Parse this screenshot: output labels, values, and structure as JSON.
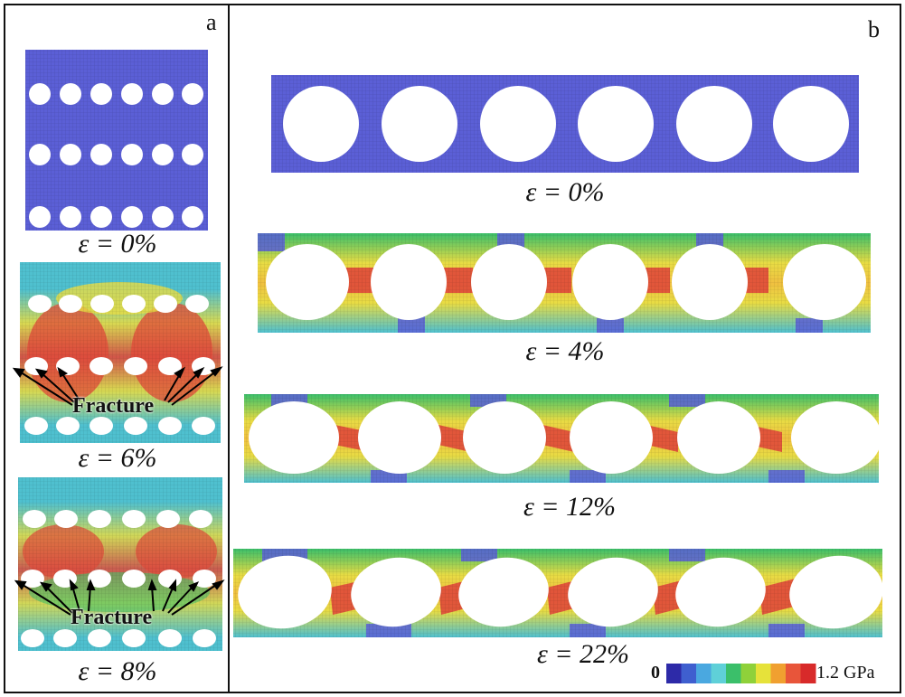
{
  "panels": {
    "a": {
      "letter": "a",
      "strain_labels": [
        "ε = 0%",
        "ε = 6%",
        "ε = 8%"
      ],
      "fracture_label": "Fracture"
    },
    "b": {
      "letter": "b",
      "strain_labels": [
        "ε = 0%",
        "ε = 4%",
        "ε = 12%",
        "ε = 22%"
      ]
    }
  },
  "colorbar": {
    "min_label": "0",
    "max_label": "1.2 GPa",
    "colors": [
      "#2d2aa8",
      "#3f5fcf",
      "#4aa8e0",
      "#5fd0d8",
      "#3bbf6a",
      "#8fd13a",
      "#e6e23a",
      "#f0a030",
      "#e8553a",
      "#d82a2a"
    ]
  },
  "colors": {
    "low_stress": "#5b5fd6",
    "mid_stress": "#4fc0cf",
    "high_stress": "#e8dc44",
    "peak_stress": "#e04a3a"
  }
}
